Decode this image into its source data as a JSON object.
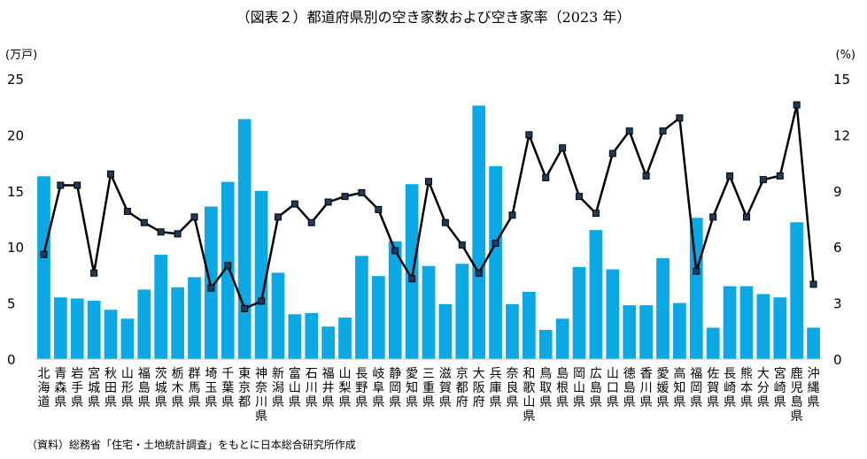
{
  "chart_data": {
    "type": "bar+line",
    "title": "（図表２）都道府県別の空き家数および空き家率（2023 年）",
    "left_axis_unit": "(万戸)",
    "right_axis_unit": "(%)",
    "left_ylim": [
      0,
      25
    ],
    "left_ticks": [
      "0",
      "5",
      "10",
      "15",
      "20",
      "25"
    ],
    "right_ylim": [
      0,
      15
    ],
    "right_ticks": [
      "0",
      "3",
      "6",
      "9",
      "12",
      "15"
    ],
    "categories": [
      "北海道",
      "青森県",
      "岩手県",
      "宮城県",
      "秋田県",
      "山形県",
      "福島県",
      "茨城県",
      "栃木県",
      "群馬県",
      "埼玉県",
      "千葉県",
      "東京都",
      "神奈川県",
      "新潟県",
      "富山県",
      "石川県",
      "福井県",
      "山梨県",
      "長野県",
      "岐阜県",
      "静岡県",
      "愛知県",
      "三重県",
      "滋賀県",
      "京都府",
      "大阪府",
      "兵庫県",
      "奈良県",
      "和歌山県",
      "鳥取県",
      "島根県",
      "岡山県",
      "広島県",
      "山口県",
      "徳島県",
      "香川県",
      "愛媛県",
      "高知県",
      "福岡県",
      "佐賀県",
      "長崎県",
      "熊本県",
      "大分県",
      "宮崎県",
      "鹿児島県",
      "沖縄県"
    ],
    "series": [
      {
        "name": "空き家数",
        "kind": "bar",
        "axis": "left",
        "color": "#0aa9e6",
        "values": [
          16.3,
          5.5,
          5.4,
          5.2,
          4.4,
          3.6,
          6.2,
          9.3,
          6.4,
          7.3,
          13.6,
          15.8,
          21.4,
          15.0,
          7.7,
          4.0,
          4.1,
          2.9,
          3.7,
          9.2,
          7.4,
          10.5,
          15.6,
          8.3,
          4.9,
          8.5,
          22.6,
          17.2,
          4.9,
          6.0,
          2.6,
          3.6,
          8.2,
          11.5,
          8.0,
          4.8,
          4.8,
          9.0,
          5.0,
          12.6,
          2.8,
          6.5,
          6.5,
          5.8,
          5.5,
          12.2,
          2.8
        ]
      },
      {
        "name": "空き家率",
        "kind": "line",
        "axis": "right",
        "color": "#000000",
        "values": [
          5.6,
          9.3,
          9.3,
          4.6,
          9.9,
          7.9,
          7.3,
          6.8,
          6.7,
          7.6,
          3.8,
          5.0,
          2.7,
          3.1,
          7.6,
          8.3,
          7.3,
          8.4,
          8.7,
          8.9,
          8.0,
          5.8,
          4.3,
          9.5,
          7.3,
          6.1,
          4.6,
          6.2,
          7.7,
          12.0,
          9.7,
          11.3,
          8.7,
          7.8,
          11.0,
          12.2,
          9.8,
          12.2,
          12.9,
          4.7,
          7.6,
          9.8,
          7.6,
          9.6,
          9.8,
          13.6,
          4.0
        ]
      }
    ]
  },
  "source_note": "（資料）総務省「住宅・土地統計調査」をもとに日本総合研究所作成"
}
